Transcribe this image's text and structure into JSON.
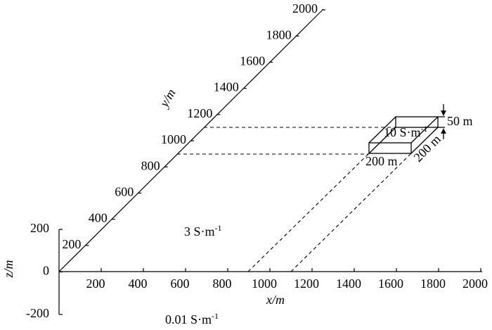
{
  "x_axis": {
    "label": "x/m",
    "ticks": [
      "200",
      "400",
      "600",
      "800",
      "1000",
      "1200",
      "1400",
      "1600",
      "1800",
      "2000"
    ]
  },
  "y_axis": {
    "label": "y/m",
    "ticks": [
      "200",
      "400",
      "600",
      "800",
      "1000",
      "1200",
      "1400",
      "1600",
      "1800",
      "2000"
    ]
  },
  "z_axis": {
    "label": "z/m",
    "ticks": [
      "200",
      "0",
      "-200"
    ]
  },
  "labels": {
    "block_conductivity": {
      "text": "10 S·m",
      "sup": "-1"
    },
    "block_width": "200 m",
    "block_depth": "200 m",
    "block_height": "50 m",
    "upper_conductivity": {
      "text": "3 S·m",
      "sup": "-1"
    },
    "lower_conductivity": {
      "text": "0.01 S·m",
      "sup": "-1"
    }
  }
}
